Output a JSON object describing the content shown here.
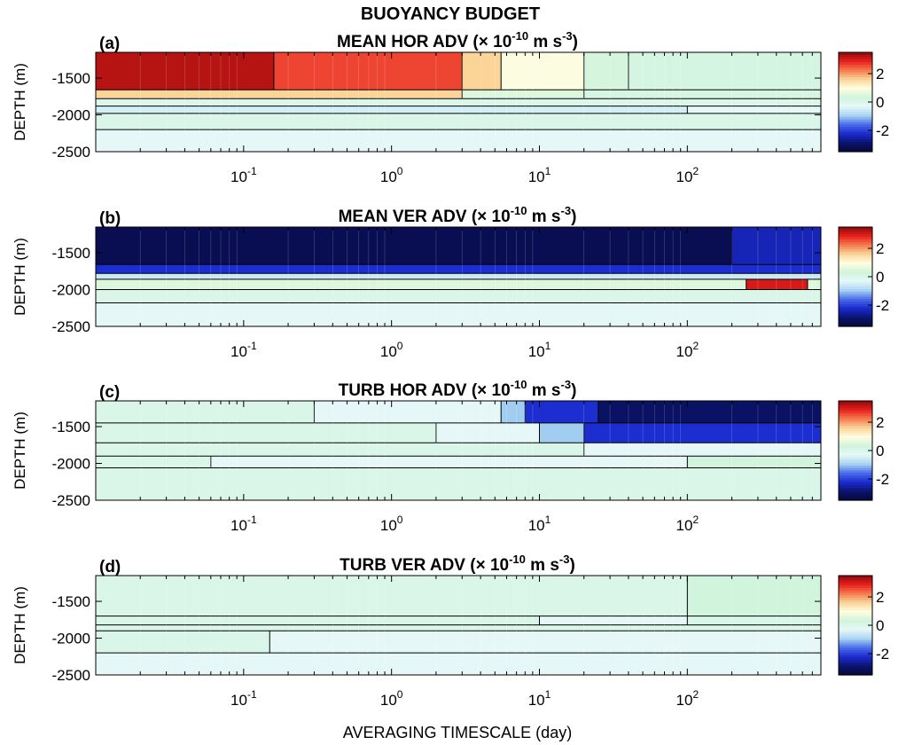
{
  "figure_title": "BUOYANCY BUDGET",
  "x_axis_label": "AVERAGING TIMESCALE (day)",
  "y_axis_label": "DEPTH (m)",
  "colors": {
    "colormap": [
      "#08083a",
      "#0a1570",
      "#1b2bd0",
      "#4a6bea",
      "#a8d4f2",
      "#e6f8f8",
      "#d0f4dc",
      "#fffde0",
      "#fad59a",
      "#f57a4e",
      "#e8201e",
      "#8a0a0a"
    ]
  },
  "chart_data": [
    {
      "type": "heatmap",
      "panel": "(a)",
      "title": "MEAN HOR ADV",
      "units_prefix": "(× 10",
      "units_exp": "-10",
      "units_mid": " m s",
      "units_exp2": "-3",
      "units_suffix": ")",
      "ylabel": "DEPTH (m)",
      "xscale": "log",
      "xlim": [
        0.01,
        800
      ],
      "ylim": [
        -2500,
        -1150
      ],
      "x_ticks": [
        0.1,
        1,
        10,
        100
      ],
      "x_tick_labels": [
        {
          "base": "10",
          "exp": "-1"
        },
        {
          "base": "10",
          "exp": "0"
        },
        {
          "base": "10",
          "exp": "1"
        },
        {
          "base": "10",
          "exp": "2"
        }
      ],
      "y_ticks": [
        -1500,
        -2000,
        -2500
      ],
      "y_tick_labels": [
        "-1500",
        "-2000",
        "-2500"
      ],
      "colorbar_ticks": [
        2,
        0,
        -2
      ],
      "colorbar_tick_labels": [
        "2",
        "0",
        "-2"
      ],
      "clim": [
        -3.5,
        3.5
      ],
      "bands": [
        {
          "top": -1150,
          "bottom": -1660,
          "segments": [
            {
              "x0": 0.01,
              "x1": 0.16,
              "value": 3.2
            },
            {
              "x0": 0.16,
              "x1": 3.0,
              "value": 2.6
            },
            {
              "x0": 3.0,
              "x1": 5.5,
              "value": 1.6
            },
            {
              "x0": 5.5,
              "x1": 20,
              "value": 0.9
            },
            {
              "x0": 20,
              "x1": 40,
              "value": 0.4
            },
            {
              "x0": 40,
              "x1": 800,
              "value": 0.2
            }
          ]
        },
        {
          "top": -1660,
          "bottom": -1780,
          "segments": [
            {
              "x0": 0.01,
              "x1": 3.0,
              "value": 1.6
            },
            {
              "x0": 3.0,
              "x1": 20,
              "value": 0.5
            },
            {
              "x0": 20,
              "x1": 800,
              "value": 0.15
            }
          ]
        },
        {
          "top": -1780,
          "bottom": -1880,
          "segments": [
            {
              "x0": 0.01,
              "x1": 800,
              "value": 0.0
            }
          ]
        },
        {
          "top": -1880,
          "bottom": -1980,
          "segments": [
            {
              "x0": 0.01,
              "x1": 100,
              "value": -0.5
            },
            {
              "x0": 100,
              "x1": 800,
              "value": -0.3
            }
          ]
        },
        {
          "top": -1980,
          "bottom": -2200,
          "segments": [
            {
              "x0": 0.01,
              "x1": 800,
              "value": 0.05
            }
          ]
        },
        {
          "top": -2200,
          "bottom": -2500,
          "segments": [
            {
              "x0": 0.01,
              "x1": 800,
              "value": -0.3
            }
          ]
        }
      ]
    },
    {
      "type": "heatmap",
      "panel": "(b)",
      "title": "MEAN VER ADV",
      "units_prefix": "(× 10",
      "units_exp": "-10",
      "units_mid": " m s",
      "units_exp2": "-3",
      "units_suffix": ")",
      "ylabel": "DEPTH (m)",
      "xscale": "log",
      "xlim": [
        0.01,
        800
      ],
      "ylim": [
        -2500,
        -1150
      ],
      "x_ticks": [
        0.1,
        1,
        10,
        100
      ],
      "x_tick_labels": [
        {
          "base": "10",
          "exp": "-1"
        },
        {
          "base": "10",
          "exp": "0"
        },
        {
          "base": "10",
          "exp": "1"
        },
        {
          "base": "10",
          "exp": "2"
        }
      ],
      "y_ticks": [
        -1500,
        -2000,
        -2500
      ],
      "y_tick_labels": [
        "-1500",
        "-2000",
        "-2500"
      ],
      "colorbar_ticks": [
        2,
        0,
        -2
      ],
      "colorbar_tick_labels": [
        "2",
        "0",
        "-2"
      ],
      "clim": [
        -3.5,
        3.5
      ],
      "bands": [
        {
          "top": -1150,
          "bottom": -1660,
          "segments": [
            {
              "x0": 0.01,
              "x1": 200,
              "value": -3.2
            },
            {
              "x0": 200,
              "x1": 800,
              "value": -2.4
            }
          ]
        },
        {
          "top": -1660,
          "bottom": -1780,
          "segments": [
            {
              "x0": 0.01,
              "x1": 800,
              "value": -2.2
            }
          ]
        },
        {
          "top": -1780,
          "bottom": -1860,
          "segments": [
            {
              "x0": 0.01,
              "x1": 800,
              "value": -0.6
            }
          ]
        },
        {
          "top": -1860,
          "bottom": -2000,
          "segments": [
            {
              "x0": 0.01,
              "x1": 250,
              "value": 0.5
            },
            {
              "x0": 250,
              "x1": 650,
              "value": 3.0
            },
            {
              "x0": 650,
              "x1": 800,
              "value": 0.5
            }
          ]
        },
        {
          "top": -2000,
          "bottom": -2180,
          "segments": [
            {
              "x0": 0.01,
              "x1": 800,
              "value": 0.05
            }
          ]
        },
        {
          "top": -2180,
          "bottom": -2500,
          "segments": [
            {
              "x0": 0.01,
              "x1": 800,
              "value": -0.3
            }
          ]
        }
      ]
    },
    {
      "type": "heatmap",
      "panel": "(c)",
      "title": "TURB HOR ADV",
      "units_prefix": "(× 10",
      "units_exp": "-10",
      "units_mid": " m s",
      "units_exp2": "-3",
      "units_suffix": ")",
      "ylabel": "DEPTH (m)",
      "xscale": "log",
      "xlim": [
        0.01,
        800
      ],
      "ylim": [
        -2500,
        -1150
      ],
      "x_ticks": [
        0.1,
        1,
        10,
        100
      ],
      "x_tick_labels": [
        {
          "base": "10",
          "exp": "-1"
        },
        {
          "base": "10",
          "exp": "0"
        },
        {
          "base": "10",
          "exp": "1"
        },
        {
          "base": "10",
          "exp": "2"
        }
      ],
      "y_ticks": [
        -1500,
        -2000,
        -2500
      ],
      "y_tick_labels": [
        "-1500",
        "-2000",
        "-2500"
      ],
      "colorbar_ticks": [
        2,
        0,
        -2
      ],
      "colorbar_tick_labels": [
        "2",
        "0",
        "-2"
      ],
      "clim": [
        -3.5,
        3.5
      ],
      "bands": [
        {
          "top": -1150,
          "bottom": -1450,
          "segments": [
            {
              "x0": 0.01,
              "x1": 0.3,
              "value": 0.05
            },
            {
              "x0": 0.3,
              "x1": 5.5,
              "value": -0.3
            },
            {
              "x0": 5.5,
              "x1": 8,
              "value": -1.0
            },
            {
              "x0": 8,
              "x1": 25,
              "value": -2.2
            },
            {
              "x0": 25,
              "x1": 800,
              "value": -3.0
            }
          ]
        },
        {
          "top": -1450,
          "bottom": -1720,
          "segments": [
            {
              "x0": 0.01,
              "x1": 2,
              "value": 0.05
            },
            {
              "x0": 2,
              "x1": 10,
              "value": -0.3
            },
            {
              "x0": 10,
              "x1": 20,
              "value": -1.0
            },
            {
              "x0": 20,
              "x1": 800,
              "value": -2.2
            }
          ]
        },
        {
          "top": -1720,
          "bottom": -1900,
          "segments": [
            {
              "x0": 0.01,
              "x1": 20,
              "value": 0.05
            },
            {
              "x0": 20,
              "x1": 800,
              "value": -0.3
            }
          ]
        },
        {
          "top": -1900,
          "bottom": -2060,
          "segments": [
            {
              "x0": 0.01,
              "x1": 0.06,
              "value": 0.05
            },
            {
              "x0": 0.06,
              "x1": 100,
              "value": -0.3
            },
            {
              "x0": 100,
              "x1": 800,
              "value": 0.3
            }
          ]
        },
        {
          "top": -2060,
          "bottom": -2500,
          "segments": [
            {
              "x0": 0.01,
              "x1": 800,
              "value": 0.05
            }
          ]
        }
      ]
    },
    {
      "type": "heatmap",
      "panel": "(d)",
      "title": "TURB VER ADV",
      "units_prefix": "(× 10",
      "units_exp": "-10",
      "units_mid": " m s",
      "units_exp2": "-3",
      "units_suffix": ")",
      "ylabel": "DEPTH (m)",
      "xscale": "log",
      "xlim": [
        0.01,
        800
      ],
      "ylim": [
        -2500,
        -1150
      ],
      "x_ticks": [
        0.1,
        1,
        10,
        100
      ],
      "x_tick_labels": [
        {
          "base": "10",
          "exp": "-1"
        },
        {
          "base": "10",
          "exp": "0"
        },
        {
          "base": "10",
          "exp": "1"
        },
        {
          "base": "10",
          "exp": "2"
        }
      ],
      "y_ticks": [
        -1500,
        -2000,
        -2500
      ],
      "y_tick_labels": [
        "-1500",
        "-2000",
        "-2500"
      ],
      "colorbar_ticks": [
        2,
        0,
        -2
      ],
      "colorbar_tick_labels": [
        "2",
        "0",
        "-2"
      ],
      "clim": [
        -3.5,
        3.5
      ],
      "bands": [
        {
          "top": -1150,
          "bottom": -1700,
          "segments": [
            {
              "x0": 0.01,
              "x1": 100,
              "value": 0.05
            },
            {
              "x0": 100,
              "x1": 800,
              "value": 0.3
            }
          ]
        },
        {
          "top": -1700,
          "bottom": -1820,
          "segments": [
            {
              "x0": 0.01,
              "x1": 10,
              "value": 0.05
            },
            {
              "x0": 10,
              "x1": 100,
              "value": -0.3
            },
            {
              "x0": 100,
              "x1": 800,
              "value": 0.05
            }
          ]
        },
        {
          "top": -1820,
          "bottom": -1900,
          "segments": [
            {
              "x0": 0.01,
              "x1": 800,
              "value": 0.05
            }
          ]
        },
        {
          "top": -1900,
          "bottom": -2200,
          "segments": [
            {
              "x0": 0.01,
              "x1": 0.15,
              "value": 0.05
            },
            {
              "x0": 0.15,
              "x1": 800,
              "value": -0.3
            }
          ]
        },
        {
          "top": -2200,
          "bottom": -2500,
          "segments": [
            {
              "x0": 0.01,
              "x1": 800,
              "value": -0.3
            }
          ]
        }
      ]
    }
  ]
}
